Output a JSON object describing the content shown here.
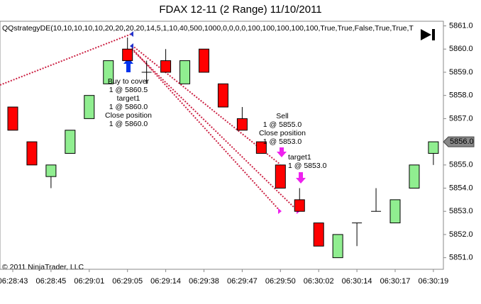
{
  "chart_data": {
    "type": "candlestick",
    "title": "FDAX 12-11 (2 Range)  11/10/2011",
    "indicator_label": "QQstrategyDE(10,10,10,10,10,20,20,20,20,14,5,1,10,40,500,1000,0,0,0,0,100,100,100,100,100,True,True,False,True,True,T",
    "copyright": "© 2011 NinjaTrader, LLC",
    "categories": [
      "06:28:43",
      null,
      "06:28:45",
      null,
      "06:29:01",
      null,
      "06:29:05",
      null,
      "06:29:14",
      null,
      "06:29:38",
      null,
      "06:29:47",
      null,
      "06:29:50",
      null,
      "06:30:02",
      null,
      "06:30:14",
      null,
      "06:30:17",
      null,
      "06:30:19"
    ],
    "open": [
      5857.5,
      5856,
      5854.5,
      5855.5,
      5857,
      5858.5,
      5860,
      5859,
      5859.5,
      5858.5,
      5860,
      5858.5,
      5857,
      5856,
      5855,
      5853.5,
      5852.5,
      5851,
      5852.5,
      5853,
      5852.5,
      5854,
      5855.5
    ],
    "high": [
      5857.5,
      5856,
      5855,
      5856.5,
      5858,
      5859.5,
      5860.5,
      5859.5,
      5860,
      5859.5,
      5860,
      5858.5,
      5857.5,
      5856,
      5855,
      5854,
      5852.5,
      5852,
      5852.5,
      5854,
      5853.5,
      5855,
      5856
    ],
    "low": [
      5856.5,
      5855,
      5854,
      5855.5,
      5857,
      5858.5,
      5859.5,
      5858.5,
      5859,
      5858.5,
      5859,
      5857.5,
      5856.5,
      5855.5,
      5854,
      5853,
      5851.5,
      5851,
      5851.5,
      5853,
      5852.5,
      5854,
      5855
    ],
    "close": [
      5856.5,
      5855,
      5855,
      5856.5,
      5858,
      5859.5,
      5859.5,
      5859,
      5859,
      5859.5,
      5859,
      5857.5,
      5856.5,
      5855.5,
      5854,
      5853,
      5851.5,
      5852,
      5852.5,
      5853,
      5853.5,
      5855,
      5856
    ],
    "up_color": "#90ee90",
    "down_color": "#ff0000",
    "ylim": [
      5850.5,
      5861.2
    ],
    "yticks": [
      {
        "value": 5851,
        "label": "5851.0"
      },
      {
        "value": 5852,
        "label": "5852.0"
      },
      {
        "value": 5853,
        "label": "5853.0"
      },
      {
        "value": 5854,
        "label": "5854.0"
      },
      {
        "value": 5855,
        "label": "5855.0"
      },
      {
        "value": 5856,
        "label": "5856.0"
      },
      {
        "value": 5857,
        "label": "5857.0"
      },
      {
        "value": 5858,
        "label": "5858.0"
      },
      {
        "value": 5859,
        "label": "5859.0"
      },
      {
        "value": 5860,
        "label": "5860.0"
      },
      {
        "value": 5861,
        "label": "5861.0"
      }
    ],
    "last_price": {
      "value": 5856,
      "label": "5856.0"
    },
    "annotations": [
      {
        "lines": [
          "Buy to cover",
          "1 @ 5860.5",
          "target1",
          "1 @ 5860.0",
          "Close position",
          "1 @ 5860.0"
        ]
      },
      {
        "lines": [
          "Sell",
          "1 @ 5855.0",
          "Close position",
          "1 @ 5853.0"
        ]
      },
      {
        "lines": [
          "target1",
          "1 @ 5853.0"
        ]
      }
    ]
  }
}
